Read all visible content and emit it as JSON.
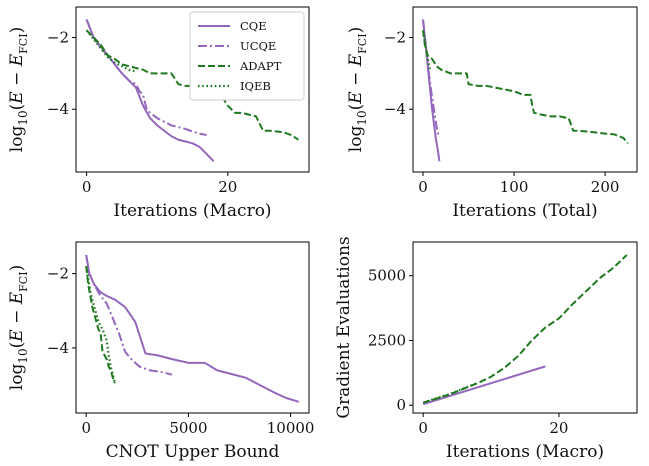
{
  "colors": {
    "purple": "#9467bd",
    "green": "#1f7a1f",
    "text": "#111111"
  },
  "legend": {
    "placement": "top-right of first panel",
    "entries": [
      {
        "label": "CQE",
        "style": "solid",
        "color": "#9467bd"
      },
      {
        "label": "UCQE",
        "style": "dashdot",
        "color": "#9467bd"
      },
      {
        "label": "ADAPT",
        "style": "dashed",
        "color": "#1f7a1f"
      },
      {
        "label": "IQEB",
        "style": "dotted",
        "color": "#1f7a1f"
      }
    ]
  },
  "chart_data": [
    {
      "type": "line",
      "xlabel": "Iterations (Macro)",
      "ylabel": "log10(E - E_FCI)",
      "xlim": [
        -1.5,
        31.5
      ],
      "ylim": [
        -5.75,
        -1.15
      ],
      "xticks": [
        0,
        20
      ],
      "xtick_labels": [
        "0",
        "20"
      ],
      "yticks": [
        -2,
        -4
      ],
      "ytick_labels": [
        "−2",
        "−4"
      ],
      "series": [
        {
          "name": "CQE",
          "style": "solid",
          "color": "#9467bd",
          "x": [
            0,
            1,
            2,
            3,
            4,
            5,
            6,
            7,
            8,
            9,
            10,
            11,
            12,
            13,
            14,
            15,
            16,
            17,
            18
          ],
          "y": [
            -1.5,
            -2.0,
            -2.25,
            -2.5,
            -2.75,
            -3.0,
            -3.2,
            -3.4,
            -3.9,
            -4.25,
            -4.45,
            -4.6,
            -4.75,
            -4.85,
            -4.9,
            -4.95,
            -5.05,
            -5.25,
            -5.45
          ]
        },
        {
          "name": "UCQE",
          "style": "dashdot",
          "color": "#9467bd",
          "x": [
            0,
            1,
            2,
            3,
            4,
            5,
            6,
            7,
            7.5,
            8,
            8.5,
            9,
            10,
            11,
            12,
            13,
            14,
            15,
            16,
            17
          ],
          "y": [
            -1.5,
            -2.0,
            -2.3,
            -2.5,
            -2.75,
            -3.0,
            -3.2,
            -3.3,
            -3.5,
            -3.6,
            -4.0,
            -4.1,
            -4.25,
            -4.35,
            -4.45,
            -4.5,
            -4.55,
            -4.62,
            -4.68,
            -4.72
          ]
        },
        {
          "name": "ADAPT",
          "style": "dashed",
          "color": "#1f7a1f",
          "x": [
            0,
            1,
            2,
            3,
            4,
            5,
            6,
            7,
            8,
            9,
            10,
            11,
            12,
            13,
            14,
            15,
            16,
            17,
            18,
            19,
            20,
            21,
            22,
            23,
            24,
            25,
            26,
            27,
            28,
            29,
            30
          ],
          "y": [
            -1.8,
            -2.0,
            -2.2,
            -2.5,
            -2.6,
            -2.75,
            -2.8,
            -2.85,
            -2.9,
            -3.0,
            -3.0,
            -3.0,
            -3.0,
            -3.3,
            -3.35,
            -3.35,
            -3.4,
            -3.45,
            -3.5,
            -3.6,
            -3.9,
            -4.1,
            -4.1,
            -4.15,
            -4.2,
            -4.6,
            -4.6,
            -4.62,
            -4.65,
            -4.72,
            -4.85
          ]
        },
        {
          "name": "IQEB",
          "style": "dotted",
          "color": "#1f7a1f",
          "x": [
            0,
            1,
            2,
            3,
            4,
            5,
            6,
            7
          ],
          "y": [
            -1.8,
            -2.05,
            -2.3,
            -2.55,
            -2.7,
            -2.8,
            -2.9,
            -2.95
          ]
        }
      ]
    },
    {
      "type": "line",
      "xlabel": "Iterations (Total)",
      "ylabel": "log10(E - E_FCI)",
      "xlim": [
        -11,
        235
      ],
      "ylim": [
        -5.75,
        -1.15
      ],
      "xticks": [
        0,
        100,
        200
      ],
      "xtick_labels": [
        "0",
        "100",
        "200"
      ],
      "yticks": [
        -2,
        -4
      ],
      "ytick_labels": [
        "−2",
        "−4"
      ],
      "series": [
        {
          "name": "CQE",
          "style": "solid",
          "color": "#9467bd",
          "x": [
            0,
            2,
            4,
            6,
            8,
            10,
            12,
            14,
            16,
            18
          ],
          "y": [
            -1.5,
            -2.0,
            -2.5,
            -3.0,
            -3.5,
            -4.0,
            -4.4,
            -4.8,
            -5.1,
            -5.45
          ]
        },
        {
          "name": "UCQE",
          "style": "dashdot",
          "color": "#9467bd",
          "x": [
            0,
            3,
            6,
            9,
            12,
            15,
            17
          ],
          "y": [
            -1.5,
            -2.2,
            -2.9,
            -3.5,
            -4.0,
            -4.5,
            -4.72
          ]
        },
        {
          "name": "ADAPT",
          "style": "dashed",
          "color": "#1f7a1f",
          "x": [
            0,
            2,
            5,
            10,
            15,
            20,
            30,
            40,
            48,
            50,
            60,
            70,
            80,
            90,
            100,
            110,
            118,
            120,
            122,
            130,
            140,
            150,
            160,
            165,
            170,
            180,
            190,
            200,
            210,
            220,
            225
          ],
          "y": [
            -1.8,
            -2.2,
            -2.5,
            -2.6,
            -2.8,
            -2.9,
            -3.0,
            -3.0,
            -3.0,
            -3.3,
            -3.35,
            -3.35,
            -3.4,
            -3.45,
            -3.5,
            -3.6,
            -3.6,
            -3.9,
            -4.1,
            -4.15,
            -4.2,
            -4.2,
            -4.25,
            -4.6,
            -4.6,
            -4.62,
            -4.65,
            -4.68,
            -4.7,
            -4.8,
            -4.95
          ]
        },
        {
          "name": "IQEB",
          "style": "dotted",
          "color": "#1f7a1f",
          "x": [
            0,
            2,
            4,
            6,
            8
          ],
          "y": [
            -1.8,
            -2.1,
            -2.4,
            -2.7,
            -2.95
          ]
        }
      ]
    },
    {
      "type": "line",
      "xlabel": "CNOT Upper Bound",
      "ylabel": "log10(E - E_FCI)",
      "xlim": [
        -500,
        10900
      ],
      "ylim": [
        -5.75,
        -1.15
      ],
      "xticks": [
        0,
        5000,
        10000
      ],
      "xtick_labels": [
        "0",
        "5000",
        "10000"
      ],
      "yticks": [
        -2,
        -4
      ],
      "ytick_labels": [
        "−2",
        "−4"
      ],
      "series": [
        {
          "name": "CQE",
          "style": "solid",
          "color": "#9467bd",
          "x": [
            0,
            150,
            400,
            700,
            1000,
            1400,
            1900,
            2400,
            2900,
            3500,
            4200,
            5000,
            5800,
            6400,
            7100,
            7800,
            8500,
            9200,
            9800,
            10400
          ],
          "y": [
            -1.5,
            -2.0,
            -2.3,
            -2.5,
            -2.6,
            -2.7,
            -2.9,
            -3.3,
            -4.15,
            -4.2,
            -4.3,
            -4.4,
            -4.4,
            -4.6,
            -4.7,
            -4.8,
            -5.0,
            -5.2,
            -5.35,
            -5.45
          ]
        },
        {
          "name": "UCQE",
          "style": "dashdot",
          "color": "#9467bd",
          "x": [
            0,
            150,
            400,
            700,
            1000,
            1300,
            1600,
            1900,
            2200,
            2600,
            3100,
            3700,
            4200
          ],
          "y": [
            -1.5,
            -2.0,
            -2.3,
            -2.6,
            -2.8,
            -3.2,
            -3.6,
            -4.1,
            -4.3,
            -4.5,
            -4.6,
            -4.65,
            -4.72
          ]
        },
        {
          "name": "ADAPT",
          "style": "dashed",
          "color": "#1f7a1f",
          "x": [
            0,
            100,
            200,
            300,
            400,
            500,
            600,
            700,
            800,
            900,
            1000,
            1100,
            1200,
            1300,
            1400
          ],
          "y": [
            -1.8,
            -2.3,
            -2.6,
            -2.9,
            -3.1,
            -3.3,
            -3.5,
            -3.6,
            -4.1,
            -4.2,
            -4.3,
            -4.5,
            -4.6,
            -4.8,
            -4.95
          ]
        },
        {
          "name": "IQEB",
          "style": "dotted",
          "color": "#1f7a1f",
          "x": [
            0,
            200,
            400,
            600,
            800,
            1000,
            1100,
            1200,
            1300,
            1400
          ],
          "y": [
            -1.8,
            -2.5,
            -2.9,
            -3.3,
            -3.5,
            -3.8,
            -4.2,
            -4.5,
            -4.7,
            -4.95
          ]
        }
      ]
    },
    {
      "type": "line",
      "xlabel": "Iterations (Macro)",
      "ylabel": "Gradient Evaluations",
      "xlim": [
        -1.5,
        31.5
      ],
      "ylim": [
        -300,
        6300
      ],
      "xticks": [
        0,
        20
      ],
      "xtick_labels": [
        "0",
        "20"
      ],
      "yticks": [
        0,
        2500,
        5000
      ],
      "ytick_labels": [
        "0",
        "2500",
        "5000"
      ],
      "series": [
        {
          "name": "CQE",
          "style": "solid",
          "color": "#9467bd",
          "x": [
            0,
            18
          ],
          "y": [
            40,
            1500
          ]
        },
        {
          "name": "ADAPT",
          "style": "dashed",
          "color": "#1f7a1f",
          "x": [
            0,
            2,
            4,
            6,
            8,
            10,
            12,
            14,
            16,
            18,
            20,
            22,
            24,
            26,
            28,
            30
          ],
          "y": [
            100,
            260,
            430,
            640,
            850,
            1100,
            1450,
            1900,
            2500,
            3000,
            3350,
            3900,
            4400,
            4900,
            5300,
            5800
          ]
        },
        {
          "name": "IQEB",
          "style": "dotted",
          "color": "#1f7a1f",
          "x": [
            0,
            2,
            4,
            6,
            8
          ],
          "y": [
            100,
            270,
            440,
            650,
            860
          ]
        }
      ]
    }
  ]
}
